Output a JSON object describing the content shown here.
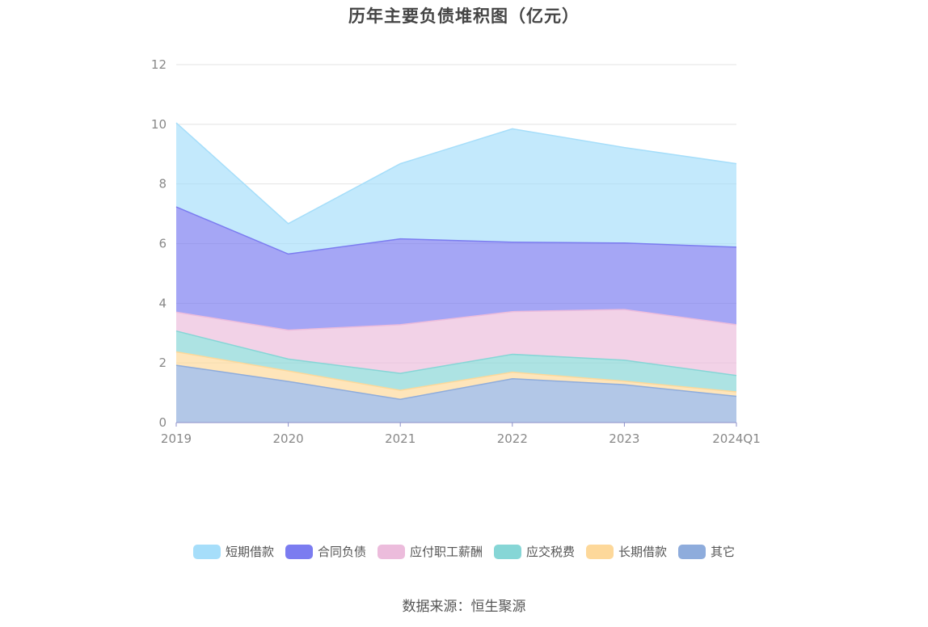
{
  "chart_data": {
    "type": "area",
    "stacked": true,
    "title": "历年主要负债堆积图（亿元）",
    "categories": [
      "2019",
      "2020",
      "2021",
      "2022",
      "2023",
      "2024Q1"
    ],
    "y_ticks": [
      "0",
      "2",
      "4",
      "6",
      "8",
      "10",
      "12"
    ],
    "ylim": [
      0,
      12
    ],
    "grid": true,
    "legend_position": "bottom",
    "series": [
      {
        "name": "其它",
        "color": "#8eacdc",
        "values": [
          1.92,
          1.38,
          0.78,
          1.47,
          1.27,
          0.88
        ]
      },
      {
        "name": "长期借款",
        "color": "#fdd89a",
        "values": [
          0.45,
          0.35,
          0.3,
          0.22,
          0.12,
          0.15
        ]
      },
      {
        "name": "应交税费",
        "color": "#86d6d6",
        "values": [
          0.7,
          0.4,
          0.57,
          0.6,
          0.7,
          0.55
        ]
      },
      {
        "name": "应付职工薪酬",
        "color": "#ecbcdc",
        "values": [
          0.63,
          0.97,
          1.63,
          1.43,
          1.7,
          1.7
        ]
      },
      {
        "name": "合同负债",
        "color": "#7b7cf0",
        "values": [
          3.53,
          2.55,
          2.88,
          2.33,
          2.23,
          2.6
        ]
      },
      {
        "name": "短期借款",
        "color": "#a6defa",
        "values": [
          2.82,
          1.02,
          2.52,
          3.8,
          3.2,
          2.8
        ]
      }
    ]
  },
  "legend_order": [
    {
      "name": "短期借款",
      "color": "#a6defa"
    },
    {
      "name": "合同负债",
      "color": "#7b7cf0"
    },
    {
      "name": "应付职工薪酬",
      "color": "#ecbcdc"
    },
    {
      "name": "应交税费",
      "color": "#86d6d6"
    },
    {
      "name": "长期借款",
      "color": "#fdd89a"
    },
    {
      "name": "其它",
      "color": "#8eacdc"
    }
  ],
  "source_text": "数据来源：恒生聚源"
}
